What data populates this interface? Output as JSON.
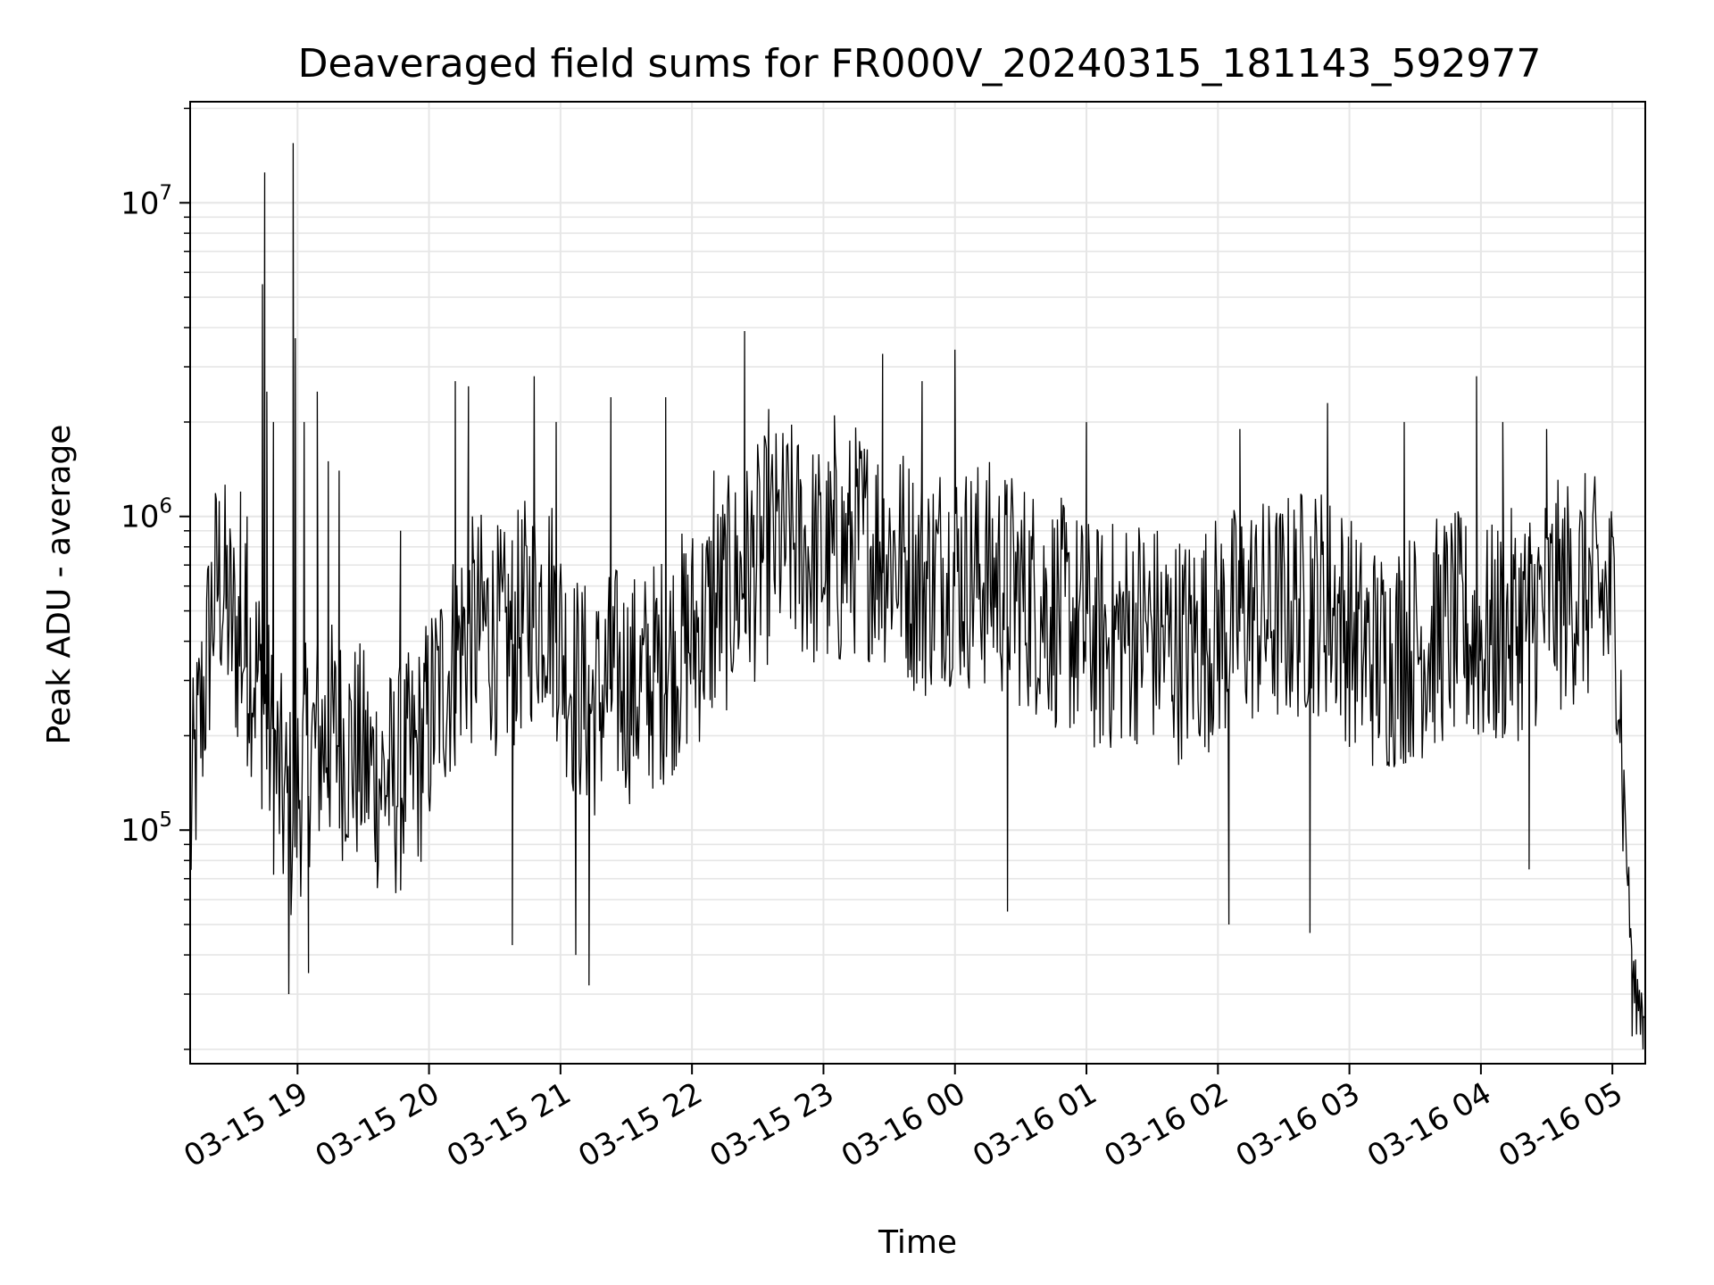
{
  "chart_data": {
    "type": "line",
    "title": "Deaveraged field sums for FR000V_20240315_181143_592977",
    "xlabel": "Time",
    "ylabel": "Peak ADU - average",
    "yscale": "log",
    "ylim": [
      18000,
      21000000
    ],
    "xlim": [
      "03-15 18:11",
      "03-16 05:15"
    ],
    "grid": true,
    "line_color": "#000000",
    "x_ticks": [
      {
        "label": "03-15 19",
        "value": "03-15 19:00"
      },
      {
        "label": "03-15 20",
        "value": "03-15 20:00"
      },
      {
        "label": "03-15 21",
        "value": "03-15 21:00"
      },
      {
        "label": "03-15 22",
        "value": "03-15 22:00"
      },
      {
        "label": "03-15 23",
        "value": "03-15 23:00"
      },
      {
        "label": "03-16 00",
        "value": "03-16 00:00"
      },
      {
        "label": "03-16 01",
        "value": "03-16 01:00"
      },
      {
        "label": "03-16 02",
        "value": "03-16 02:00"
      },
      {
        "label": "03-16 03",
        "value": "03-16 03:00"
      },
      {
        "label": "03-16 04",
        "value": "03-16 04:00"
      },
      {
        "label": "03-16 05",
        "value": "03-16 05:00"
      }
    ],
    "y_ticks": [
      {
        "base": "10",
        "exp": "5",
        "value": 100000
      },
      {
        "base": "10",
        "exp": "6",
        "value": 1000000
      },
      {
        "base": "10",
        "exp": "7",
        "value": 10000000
      }
    ],
    "series": [
      {
        "points": [
          [
            "03-15 18:11",
            95000
          ],
          [
            "03-15 18:13",
            150000
          ],
          [
            "03-15 18:15",
            200000
          ],
          [
            "03-15 18:18",
            300000
          ],
          [
            "03-15 18:21",
            500000
          ],
          [
            "03-15 18:24",
            650000
          ],
          [
            "03-15 18:27",
            550000
          ],
          [
            "03-15 18:30",
            450000
          ],
          [
            "03-15 18:33",
            400000
          ],
          [
            "03-15 18:36",
            380000
          ],
          [
            "03-15 18:39",
            350000
          ],
          [
            "03-15 18:42",
            300000
          ],
          [
            "03-15 18:45",
            250000
          ],
          [
            "03-15 18:48",
            180000
          ],
          [
            "03-15 18:51",
            150000
          ],
          [
            "03-15 18:54",
            120000
          ],
          [
            "03-15 18:57",
            110000
          ],
          [
            "03-15 19:05",
            180000
          ],
          [
            "03-15 19:15",
            200000
          ],
          [
            "03-15 19:25",
            180000
          ],
          [
            "03-15 19:35",
            150000
          ],
          [
            "03-15 19:45",
            140000
          ],
          [
            "03-15 19:55",
            170000
          ],
          [
            "03-15 20:05",
            280000
          ],
          [
            "03-15 20:15",
            400000
          ],
          [
            "03-15 20:25",
            450000
          ],
          [
            "03-15 20:35",
            380000
          ],
          [
            "03-15 20:45",
            500000
          ],
          [
            "03-15 20:55",
            550000
          ],
          [
            "03-15 21:05",
            300000
          ],
          [
            "03-15 21:15",
            250000
          ],
          [
            "03-15 21:25",
            300000
          ],
          [
            "03-15 21:35",
            280000
          ],
          [
            "03-15 21:45",
            320000
          ],
          [
            "03-15 21:55",
            380000
          ],
          [
            "03-15 22:05",
            450000
          ],
          [
            "03-15 22:15",
            550000
          ],
          [
            "03-15 22:25",
            650000
          ],
          [
            "03-15 22:35",
            800000
          ],
          [
            "03-15 22:45",
            850000
          ],
          [
            "03-15 22:55",
            750000
          ],
          [
            "03-15 23:05",
            700000
          ],
          [
            "03-15 23:15",
            850000
          ],
          [
            "03-15 23:25",
            800000
          ],
          [
            "03-15 23:35",
            750000
          ],
          [
            "03-15 23:45",
            600000
          ],
          [
            "03-15 23:55",
            700000
          ],
          [
            "03-16 00:05",
            650000
          ],
          [
            "03-16 00:15",
            650000
          ],
          [
            "03-16 00:25",
            600000
          ],
          [
            "03-16 00:35",
            550000
          ],
          [
            "03-16 00:45",
            500000
          ],
          [
            "03-16 00:55",
            450000
          ],
          [
            "03-16 01:05",
            400000
          ],
          [
            "03-16 01:15",
            420000
          ],
          [
            "03-16 01:25",
            450000
          ],
          [
            "03-16 01:35",
            400000
          ],
          [
            "03-16 01:45",
            380000
          ],
          [
            "03-16 01:55",
            420000
          ],
          [
            "03-16 02:05",
            450000
          ],
          [
            "03-16 02:15",
            500000
          ],
          [
            "03-16 02:25",
            480000
          ],
          [
            "03-16 02:35",
            520000
          ],
          [
            "03-16 02:45",
            550000
          ],
          [
            "03-16 02:55",
            500000
          ],
          [
            "03-16 03:05",
            380000
          ],
          [
            "03-16 03:15",
            350000
          ],
          [
            "03-16 03:25",
            380000
          ],
          [
            "03-16 03:35",
            400000
          ],
          [
            "03-16 03:45",
            450000
          ],
          [
            "03-16 03:55",
            420000
          ],
          [
            "03-16 04:05",
            400000
          ],
          [
            "03-16 04:15",
            450000
          ],
          [
            "03-16 04:25",
            500000
          ],
          [
            "03-16 04:35",
            550000
          ],
          [
            "03-16 04:45",
            600000
          ],
          [
            "03-16 04:55",
            550000
          ],
          [
            "03-16 05:02",
            500000
          ],
          [
            "03-16 05:05",
            150000
          ],
          [
            "03-16 05:08",
            50000
          ],
          [
            "03-16 05:10",
            30000
          ],
          [
            "03-16 05:13",
            28000
          ],
          [
            "03-16 05:15",
            30000
          ]
        ],
        "spikes": [
          [
            "03-15 18:34",
            1200000
          ],
          [
            "03-15 18:37",
            1000000
          ],
          [
            "03-15 18:44",
            5500000
          ],
          [
            "03-15 18:45",
            12500000
          ],
          [
            "03-15 18:46",
            2500000
          ],
          [
            "03-15 18:49",
            2000000
          ],
          [
            "03-15 18:56",
            30000
          ],
          [
            "03-15 18:58",
            15500000
          ],
          [
            "03-15 18:59",
            3700000
          ],
          [
            "03-15 19:03",
            2000000
          ],
          [
            "03-15 19:05",
            35000
          ],
          [
            "03-15 19:09",
            2500000
          ],
          [
            "03-15 19:14",
            1500000
          ],
          [
            "03-15 19:19",
            1400000
          ],
          [
            "03-15 19:47",
            900000
          ],
          [
            "03-15 20:12",
            2700000
          ],
          [
            "03-15 20:18",
            2600000
          ],
          [
            "03-15 20:38",
            43000
          ],
          [
            "03-15 20:48",
            2800000
          ],
          [
            "03-15 20:58",
            2000000
          ],
          [
            "03-15 21:07",
            40000
          ],
          [
            "03-15 21:13",
            32000
          ],
          [
            "03-15 21:23",
            2400000
          ],
          [
            "03-15 21:48",
            2400000
          ],
          [
            "03-15 22:10",
            1400000
          ],
          [
            "03-15 22:24",
            3900000
          ],
          [
            "03-15 22:35",
            2200000
          ],
          [
            "03-15 23:05",
            2100000
          ],
          [
            "03-15 23:27",
            3300000
          ],
          [
            "03-15 23:45",
            2700000
          ],
          [
            "03-16 00:00",
            3400000
          ],
          [
            "03-16 00:24",
            55000
          ],
          [
            "03-16 01:00",
            2000000
          ],
          [
            "03-16 02:05",
            50000
          ],
          [
            "03-16 02:10",
            1900000
          ],
          [
            "03-16 02:42",
            47000
          ],
          [
            "03-16 02:50",
            2300000
          ],
          [
            "03-16 03:25",
            2000000
          ],
          [
            "03-16 03:58",
            2800000
          ],
          [
            "03-16 04:10",
            2000000
          ],
          [
            "03-16 04:22",
            75000
          ],
          [
            "03-16 04:30",
            1900000
          ],
          [
            "03-16 05:09",
            22000
          ],
          [
            "03-16 05:14",
            20000
          ]
        ]
      }
    ]
  }
}
